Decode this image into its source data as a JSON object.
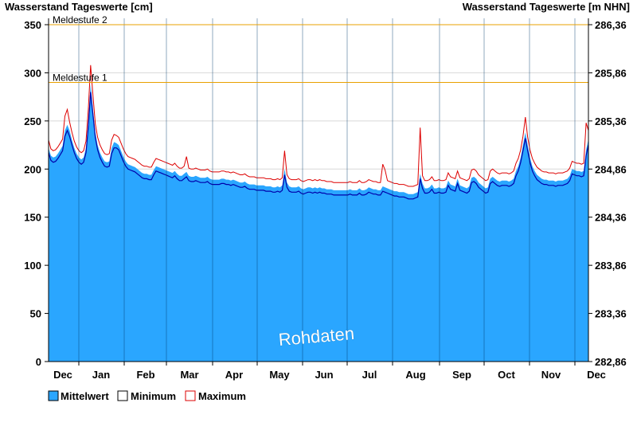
{
  "chart_data": {
    "type": "area",
    "title_left": "Wasserstand Tageswerte [cm]",
    "title_right": "Wasserstand Tageswerte [m NHN]",
    "ylim": [
      0,
      350
    ],
    "y_ticks": [
      "0",
      "50",
      "100",
      "150",
      "200",
      "250",
      "300",
      "350"
    ],
    "y_right_ticks": [
      "282,86",
      "283,36",
      "283,86",
      "284,36",
      "284,86",
      "285,36",
      "285,86",
      "286,36"
    ],
    "x_labels": [
      "Dec",
      "Jan",
      "Feb",
      "Mar",
      "Apr",
      "May",
      "Jun",
      "Jul",
      "Aug",
      "Sep",
      "Oct",
      "Nov",
      "Dec"
    ],
    "thresholds": [
      {
        "label": "Meldestufe 1",
        "value": 290
      },
      {
        "label": "Meldestufe 2",
        "value": 350
      }
    ],
    "watermark": "Rohdaten",
    "legend": [
      "Mittelwert",
      "Minimum",
      "Maximum"
    ],
    "series": [
      {
        "name": "Mittelwert",
        "color": "#2aa6ff",
        "values": [
          222,
          214,
          212,
          213,
          216,
          220,
          224,
          240,
          246,
          240,
          230,
          222,
          216,
          212,
          210,
          212,
          222,
          250,
          288,
          262,
          238,
          225,
          217,
          212,
          208,
          207,
          208,
          222,
          228,
          227,
          225,
          219,
          213,
          208,
          205,
          204,
          203,
          202,
          200,
          198,
          196,
          195,
          195,
          194,
          194,
          199,
          203,
          202,
          201,
          200,
          199,
          198,
          197,
          196,
          198,
          195,
          193,
          193,
          195,
          197,
          193,
          192,
          192,
          193,
          192,
          191,
          191,
          191,
          192,
          190,
          189,
          189,
          189,
          189,
          190,
          190,
          189,
          189,
          188,
          189,
          188,
          187,
          186,
          186,
          187,
          185,
          184,
          184,
          184,
          183,
          183,
          183,
          183,
          182,
          182,
          182,
          181,
          181,
          182,
          181,
          183,
          200,
          186,
          182,
          181,
          181,
          181,
          182,
          180,
          179,
          180,
          181,
          181,
          180,
          181,
          180,
          181,
          180,
          180,
          179,
          179,
          179,
          178,
          178,
          178,
          178,
          178,
          178,
          178,
          179,
          178,
          178,
          178,
          180,
          178,
          178,
          179,
          181,
          180,
          179,
          179,
          178,
          178,
          182,
          181,
          180,
          179,
          178,
          177,
          177,
          176,
          176,
          176,
          175,
          174,
          174,
          174,
          175,
          176,
          195,
          185,
          180,
          180,
          181,
          184,
          180,
          180,
          181,
          180,
          180,
          181,
          188,
          184,
          183,
          182,
          190,
          183,
          182,
          181,
          180,
          182,
          191,
          192,
          190,
          186,
          184,
          182,
          180,
          181,
          190,
          192,
          190,
          188,
          187,
          188,
          188,
          188,
          187,
          188,
          190,
          198,
          203,
          212,
          225,
          238,
          225,
          212,
          203,
          198,
          194,
          192,
          190,
          189,
          189,
          188,
          188,
          188,
          187,
          188,
          188,
          188,
          189,
          190,
          193,
          200,
          199,
          198,
          198,
          197,
          198,
          220,
          231
        ]
      },
      {
        "name": "Minimum",
        "color": "#0000aa",
        "values": [
          217,
          209,
          207,
          208,
          211,
          215,
          219,
          234,
          240,
          234,
          225,
          217,
          211,
          207,
          205,
          207,
          217,
          244,
          280,
          256,
          233,
          220,
          212,
          207,
          203,
          202,
          203,
          216,
          222,
          222,
          220,
          214,
          208,
          203,
          200,
          199,
          198,
          197,
          195,
          193,
          191,
          190,
          190,
          189,
          189,
          194,
          198,
          197,
          196,
          195,
          194,
          193,
          192,
          191,
          193,
          190,
          188,
          188,
          190,
          192,
          188,
          187,
          187,
          188,
          187,
          186,
          186,
          186,
          187,
          185,
          184,
          184,
          184,
          184,
          185,
          185,
          184,
          184,
          183,
          184,
          183,
          182,
          181,
          181,
          182,
          180,
          179,
          179,
          179,
          178,
          178,
          178,
          178,
          177,
          177,
          177,
          176,
          176,
          177,
          176,
          178,
          194,
          181,
          177,
          176,
          176,
          176,
          177,
          175,
          174,
          175,
          176,
          176,
          175,
          176,
          175,
          176,
          175,
          175,
          174,
          174,
          174,
          173,
          173,
          173,
          173,
          173,
          173,
          173,
          174,
          173,
          173,
          173,
          175,
          173,
          173,
          174,
          176,
          175,
          174,
          174,
          173,
          173,
          177,
          176,
          175,
          174,
          173,
          172,
          172,
          171,
          171,
          171,
          170,
          169,
          169,
          169,
          170,
          171,
          190,
          180,
          175,
          175,
          176,
          179,
          175,
          175,
          176,
          175,
          175,
          176,
          183,
          179,
          178,
          177,
          185,
          178,
          177,
          176,
          175,
          177,
          186,
          187,
          185,
          181,
          179,
          177,
          175,
          176,
          185,
          187,
          185,
          183,
          182,
          183,
          183,
          183,
          182,
          183,
          185,
          193,
          198,
          207,
          219,
          232,
          219,
          207,
          198,
          193,
          189,
          187,
          185,
          184,
          184,
          183,
          183,
          183,
          182,
          183,
          183,
          183,
          184,
          185,
          188,
          195,
          194,
          193,
          193,
          192,
          193,
          214,
          225
        ]
      },
      {
        "name": "Maximum",
        "color": "#dd0000",
        "values": [
          230,
          221,
          219,
          220,
          223,
          227,
          231,
          255,
          262,
          249,
          238,
          229,
          223,
          219,
          217,
          219,
          229,
          262,
          308,
          276,
          247,
          233,
          225,
          220,
          216,
          215,
          216,
          230,
          236,
          235,
          233,
          227,
          221,
          216,
          213,
          212,
          211,
          210,
          208,
          206,
          204,
          203,
          203,
          202,
          202,
          207,
          211,
          210,
          209,
          208,
          207,
          206,
          205,
          204,
          206,
          203,
          201,
          201,
          203,
          213,
          201,
          200,
          200,
          201,
          200,
          199,
          199,
          199,
          200,
          198,
          197,
          197,
          197,
          197,
          198,
          198,
          197,
          197,
          196,
          197,
          196,
          195,
          194,
          194,
          195,
          193,
          192,
          192,
          192,
          191,
          191,
          191,
          191,
          190,
          190,
          190,
          189,
          189,
          190,
          189,
          191,
          219,
          194,
          190,
          189,
          189,
          189,
          190,
          188,
          187,
          188,
          189,
          189,
          188,
          189,
          188,
          189,
          188,
          188,
          187,
          187,
          187,
          186,
          186,
          186,
          186,
          186,
          186,
          186,
          187,
          186,
          186,
          186,
          188,
          186,
          186,
          187,
          189,
          188,
          187,
          187,
          186,
          186,
          205,
          199,
          188,
          187,
          186,
          185,
          185,
          184,
          184,
          184,
          183,
          182,
          182,
          182,
          183,
          184,
          243,
          193,
          188,
          188,
          189,
          192,
          188,
          188,
          189,
          188,
          188,
          189,
          196,
          192,
          191,
          190,
          198,
          191,
          190,
          189,
          188,
          190,
          199,
          200,
          198,
          194,
          192,
          190,
          188,
          189,
          198,
          200,
          198,
          196,
          195,
          196,
          196,
          196,
          195,
          196,
          198,
          206,
          211,
          220,
          234,
          254,
          233,
          220,
          211,
          206,
          202,
          200,
          198,
          197,
          197,
          196,
          196,
          196,
          195,
          196,
          196,
          196,
          197,
          198,
          201,
          208,
          207,
          206,
          206,
          205,
          206,
          248,
          240
        ]
      }
    ]
  }
}
